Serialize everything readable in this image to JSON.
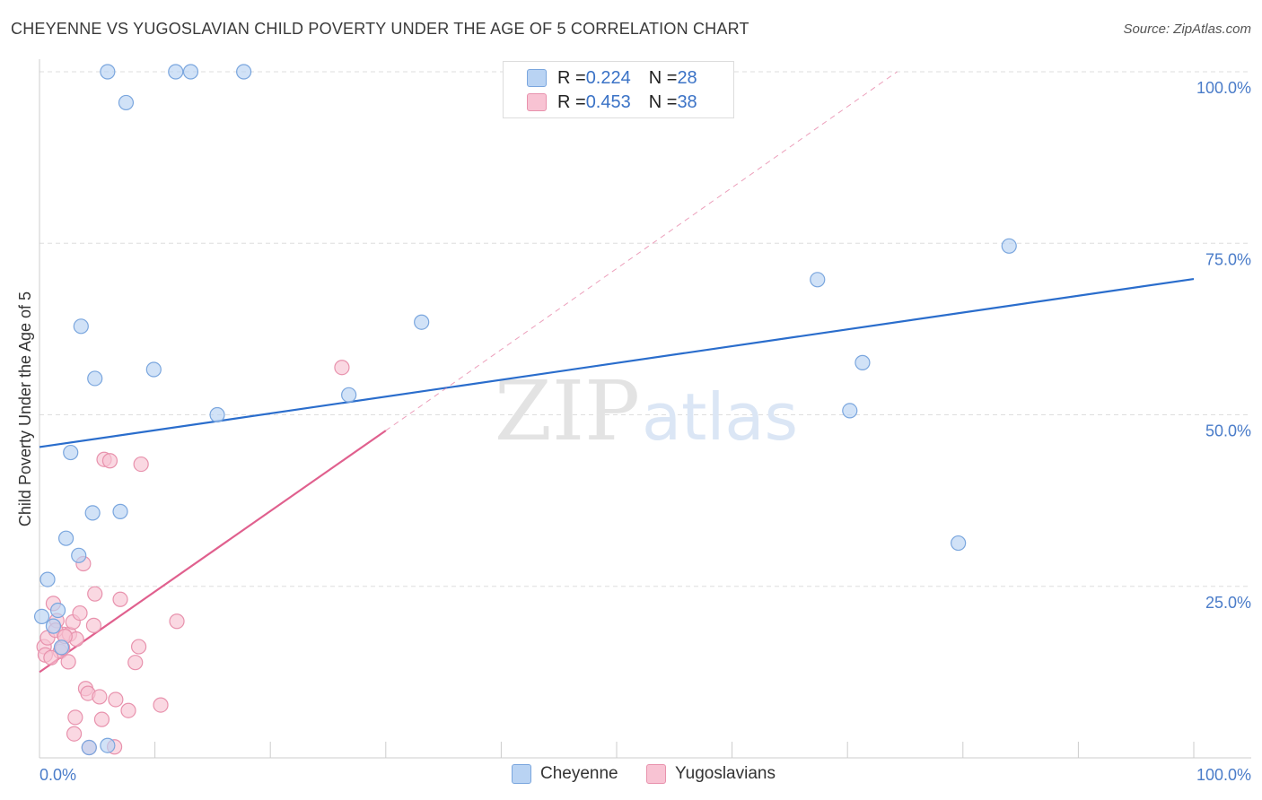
{
  "header": {
    "title": "CHEYENNE VS YUGOSLAVIAN CHILD POVERTY UNDER THE AGE OF 5 CORRELATION CHART",
    "source": "Source: ZipAtlas.com"
  },
  "watermark": {
    "zip": "ZIP",
    "atlas": "atlas"
  },
  "legend_top": {
    "rows": [
      {
        "r_label": "R = ",
        "r_value": "0.224",
        "n_label": "N = ",
        "n_value": "28"
      },
      {
        "r_label": "R = ",
        "r_value": "0.453",
        "n_label": "N = ",
        "n_value": "38"
      }
    ]
  },
  "legend_bottom": {
    "items": [
      "Cheyenne",
      "Yugoslavians"
    ]
  },
  "colors": {
    "cheyenne_fill": "#b9d3f3",
    "cheyenne_stroke": "#7aa6de",
    "cheyenne_line": "#2a6dcc",
    "yugo_fill": "#f8c3d3",
    "yugo_stroke": "#e892ad",
    "yugo_line": "#e0608e",
    "tick_label": "#4a7cc9",
    "grid": "#dddddd"
  },
  "chart_data": {
    "type": "scatter",
    "title": "CHEYENNE VS YUGOSLAVIAN CHILD POVERTY UNDER THE AGE OF 5 CORRELATION CHART",
    "xlabel": "",
    "ylabel": "Child Poverty Under the Age of 5",
    "xlim": [
      0,
      100
    ],
    "ylim": [
      0,
      100
    ],
    "x_tick_labels": [
      "0.0%",
      "100.0%"
    ],
    "y_tick_labels": [
      "100.0%",
      "75.0%",
      "50.0%",
      "25.0%"
    ],
    "y_ticks": [
      100,
      75,
      50,
      25
    ],
    "grid": true,
    "legend_placement": "bottom",
    "series": [
      {
        "name": "Cheyenne",
        "r": 0.224,
        "n": 28,
        "trend": {
          "x": [
            0,
            100
          ],
          "y": [
            45.3,
            69.8
          ]
        },
        "points": [
          [
            0.2,
            20.6
          ],
          [
            1.6,
            21.5
          ],
          [
            1.2,
            19.2
          ],
          [
            1.9,
            16.1
          ],
          [
            0.7,
            26.0
          ],
          [
            2.3,
            32.0
          ],
          [
            3.4,
            29.5
          ],
          [
            2.7,
            44.5
          ],
          [
            4.6,
            35.7
          ],
          [
            7.0,
            35.9
          ],
          [
            4.8,
            55.3
          ],
          [
            3.6,
            62.9
          ],
          [
            9.9,
            56.6
          ],
          [
            15.4,
            50.0
          ],
          [
            5.9,
            100.0
          ],
          [
            7.5,
            95.5
          ],
          [
            11.8,
            100.0
          ],
          [
            13.1,
            100.0
          ],
          [
            17.7,
            100.0
          ],
          [
            33.1,
            63.5
          ],
          [
            26.8,
            52.9
          ],
          [
            4.3,
            1.5
          ],
          [
            5.9,
            1.8
          ],
          [
            67.4,
            69.7
          ],
          [
            84.0,
            74.6
          ],
          [
            71.3,
            57.6
          ],
          [
            70.2,
            50.6
          ],
          [
            79.6,
            31.3
          ]
        ]
      },
      {
        "name": "Yugoslavians",
        "r": 0.453,
        "n": 38,
        "trend": {
          "x": [
            0,
            30
          ],
          "y": [
            12.5,
            47.7
          ]
        },
        "trend_extended": {
          "x": [
            30,
            74.3
          ],
          "y": [
            47.7,
            100.0
          ]
        },
        "points": [
          [
            0.4,
            16.2
          ],
          [
            0.7,
            17.5
          ],
          [
            0.5,
            15.0
          ],
          [
            1.2,
            22.5
          ],
          [
            1.5,
            20.0
          ],
          [
            1.8,
            15.5
          ],
          [
            2.1,
            18.0
          ],
          [
            2.6,
            18.0
          ],
          [
            2.5,
            14.0
          ],
          [
            2.9,
            19.8
          ],
          [
            3.2,
            17.3
          ],
          [
            3.5,
            21.1
          ],
          [
            3.8,
            28.3
          ],
          [
            4.0,
            10.1
          ],
          [
            4.2,
            9.4
          ],
          [
            4.7,
            19.3
          ],
          [
            4.8,
            23.9
          ],
          [
            5.2,
            8.9
          ],
          [
            5.6,
            43.5
          ],
          [
            6.1,
            43.3
          ],
          [
            7.0,
            23.1
          ],
          [
            8.3,
            13.9
          ],
          [
            8.6,
            16.2
          ],
          [
            8.8,
            42.8
          ],
          [
            11.9,
            19.9
          ],
          [
            26.2,
            56.9
          ],
          [
            3.1,
            5.9
          ],
          [
            3.0,
            3.5
          ],
          [
            5.4,
            5.6
          ],
          [
            6.6,
            8.5
          ],
          [
            7.7,
            6.9
          ],
          [
            10.5,
            7.7
          ],
          [
            4.3,
            1.5
          ],
          [
            6.5,
            1.6
          ],
          [
            1.0,
            14.6
          ],
          [
            1.4,
            18.6
          ],
          [
            2.0,
            16.0
          ],
          [
            2.2,
            17.7
          ]
        ]
      }
    ]
  }
}
